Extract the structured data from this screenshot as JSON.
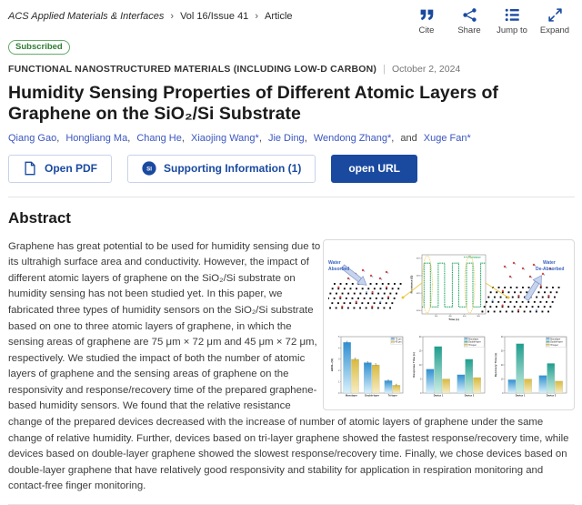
{
  "header": {
    "breadcrumb": [
      "ACS Applied Materials & Interfaces",
      "Vol 16/Issue 41",
      "Article"
    ],
    "badge": "Subscribed",
    "actions": [
      {
        "name": "cite",
        "label": "Cite",
        "icon": "quote-icon"
      },
      {
        "name": "share",
        "label": "Share",
        "icon": "share-icon"
      },
      {
        "name": "jump-to",
        "label": "Jump to",
        "icon": "list-icon"
      },
      {
        "name": "expand",
        "label": "Expand",
        "icon": "expand-icon"
      }
    ]
  },
  "meta": {
    "category": "FUNCTIONAL NANOSTRUCTURED MATERIALS (INCLUDING LOW-D CARBON)",
    "separator": "|",
    "date": "October 2, 2024"
  },
  "article": {
    "title": "Humidity Sensing Properties of Different Atomic Layers of Graphene on the SiO₂/Si Substrate",
    "authors": [
      "Qiang Gao",
      "Hongliang Ma",
      "Chang He",
      "Xiaojing Wang*",
      "Jie Ding",
      "Wendong Zhang*"
    ],
    "and_label": "and",
    "last_author": "Xuge Fan*"
  },
  "toolbar": {
    "open_pdf_label": "Open PDF",
    "supporting_info_label": "Supporting Information (1)",
    "si_icon_text": "SI",
    "open_url_label": "open URL"
  },
  "abstract": {
    "heading": "Abstract",
    "text": "Graphene has great potential to be used for humidity sensing due to its ultrahigh surface area and conductivity. However, the impact of different atomic layers of graphene on the SiO₂/Si substrate on humidity sensing has not been studied yet. In this paper, we fabricated three types of humidity sensors on the SiO₂/Si substrate based on one to three atomic layers of graphene, in which the sensing areas of graphene are 75 μm × 72 μm and 45 μm × 72 μm, respectively. We studied the impact of both the number of atomic layers of graphene and the sensing areas of graphene on the responsivity and response/recovery time of the prepared graphene-based humidity sensors. We found that the relative resistance change of the prepared devices decreased with the increase of number of atomic layers of graphene under the same change of relative humidity. Further, devices based on tri-layer graphene showed the fastest response/recovery time, while devices based on double-layer graphene showed the slowest response/recovery time. Finally, we chose devices based on double-layer graphene that have relatively good responsivity and stability for application in respiration monitoring and contact-free finger monitoring."
  },
  "figure": {
    "water_absorbed_label": "Water Absorbed",
    "water_deabsorbed_label": "Water De-Absorbed"
  },
  "chart_data": [
    {
      "id": "resistance-time",
      "type": "line",
      "title": "",
      "xlabel": "Time (s)",
      "ylabel": "Resistance (Ω)",
      "legend": [
        "Resistance"
      ],
      "x_ticks": [
        200,
        400,
        600,
        800
      ],
      "y_ticks": [
        6200,
        6225,
        6250,
        6275
      ],
      "xlim": [
        0,
        900
      ],
      "ylim": [
        6195,
        6280
      ],
      "waveform": {
        "low": 6205,
        "high": 6268,
        "period": 200,
        "duty": 0.45,
        "start": 30,
        "cycles": 4
      }
    },
    {
      "id": "responsivity",
      "type": "bar",
      "categories": [
        "Monolayer",
        "Double-layer",
        "Tri-layer"
      ],
      "series": [
        {
          "name": "75 μm",
          "color": "blue",
          "values": [
            4.5,
            2.7,
            1.1
          ]
        },
        {
          "name": "45 μm",
          "color": "yellow",
          "values": [
            3.0,
            2.5,
            0.7
          ]
        }
      ],
      "ylabel": "ΔR/R₀ (%)",
      "ylim": [
        0,
        5
      ],
      "ytick_step": 1
    },
    {
      "id": "response-time",
      "type": "bar",
      "categories": [
        "Device 1",
        "Device 2"
      ],
      "series": [
        {
          "name": "Monolayer",
          "color": "blue",
          "values": [
            8.5,
            6.5
          ]
        },
        {
          "name": "Double-layer",
          "color": "teal",
          "values": [
            16.5,
            12.0
          ]
        },
        {
          "name": "Tri-layer",
          "color": "yellow",
          "values": [
            5.0,
            5.5
          ]
        }
      ],
      "ylabel": "Response Time (s)",
      "ylim": [
        0,
        20
      ],
      "ytick_step": 5
    },
    {
      "id": "recovery-time",
      "type": "bar",
      "categories": [
        "Device 1",
        "Device 2"
      ],
      "series": [
        {
          "name": "Monolayer",
          "color": "blue",
          "values": [
            9.5,
            12.5
          ]
        },
        {
          "name": "Double-layer",
          "color": "teal",
          "values": [
            35.0,
            21.0
          ]
        },
        {
          "name": "Tri-layer",
          "color": "yellow",
          "values": [
            10.0,
            8.5
          ]
        }
      ],
      "ylabel": "Recovery Time (s)",
      "ylim": [
        0,
        40
      ],
      "ytick_step": 10
    }
  ],
  "colors": {
    "accent": "#1a4aa0",
    "author_link": "#3c56c0",
    "subscribed_green": "#2e7d32",
    "wave_green": "#17a35b",
    "connector_yellow": "#eec43e",
    "bar_blue": "#2f8fd0",
    "bar_teal": "#1f9e8e",
    "bar_yellow": "#d8b93e",
    "figure_label_blue": "#3b63bf"
  }
}
